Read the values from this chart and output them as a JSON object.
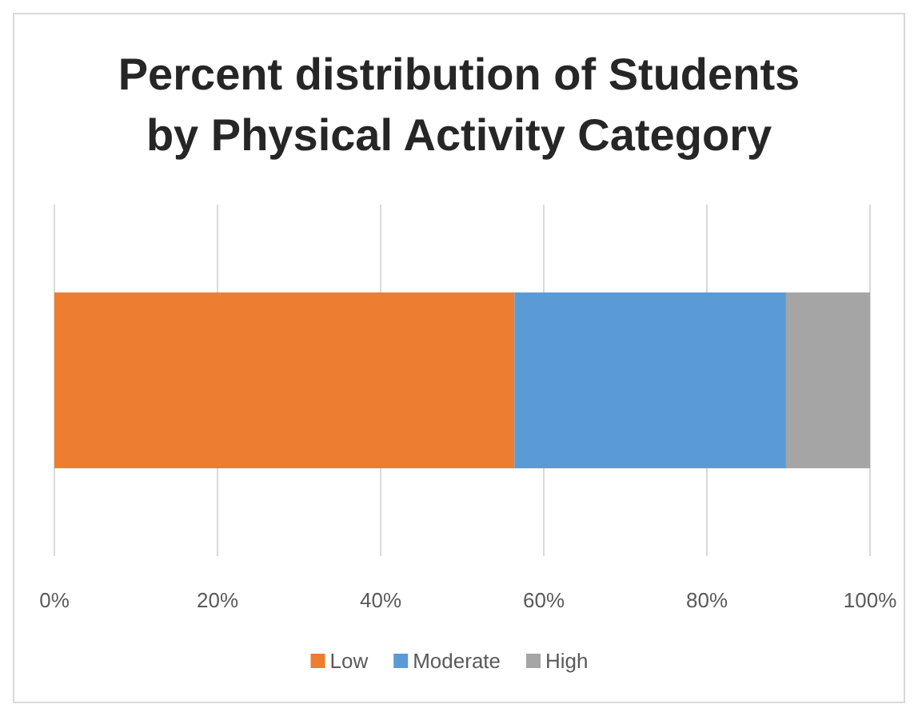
{
  "chart_data": {
    "type": "bar",
    "orientation": "horizontal",
    "stacked": true,
    "title": "Percent distribution of Students by Physical Activity Category",
    "categories": [
      null
    ],
    "series": [
      {
        "name": "Low",
        "color": "#ed7d31",
        "values": [
          56.4
        ]
      },
      {
        "name": "Moderate",
        "color": "#5b9bd5",
        "values": [
          33.3
        ]
      },
      {
        "name": "High",
        "color": "#a5a5a5",
        "values": [
          10.3
        ]
      }
    ],
    "xlim": [
      0,
      100
    ],
    "xticks": [
      {
        "value": 0,
        "label": "0%"
      },
      {
        "value": 20,
        "label": "20%"
      },
      {
        "value": 40,
        "label": "40%"
      },
      {
        "value": 60,
        "label": "60%"
      },
      {
        "value": 80,
        "label": "80%"
      },
      {
        "value": 100,
        "label": "100%"
      }
    ],
    "grid": "x",
    "legend": "bottom"
  }
}
